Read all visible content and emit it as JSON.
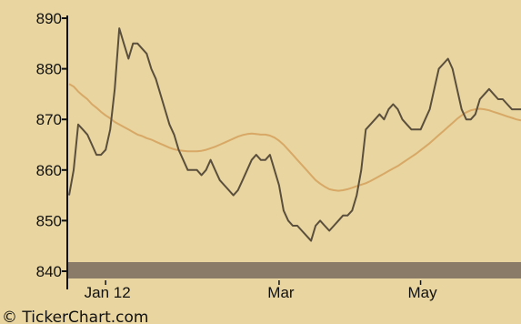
{
  "chart_data": {
    "type": "line",
    "title": "",
    "xlabel": "",
    "ylabel": "",
    "ylim": [
      840,
      890
    ],
    "yticks": [
      "890",
      "880",
      "870",
      "860",
      "850",
      "840"
    ],
    "ytick_values": [
      890,
      880,
      870,
      860,
      850,
      840
    ],
    "xticks": [
      {
        "label": "Jan 12",
        "index": 8
      },
      {
        "label": "Mar",
        "index": 46
      },
      {
        "label": "May",
        "index": 77
      }
    ],
    "x_count": 100,
    "grid": false,
    "legend": "none",
    "colors": {
      "background": "#e8d59f",
      "price": "#5a4e3c",
      "moving_average": "#d8a866",
      "volume_band": "#8a7a68",
      "axis": "#111111"
    },
    "series": [
      {
        "values": [
          855,
          860,
          869,
          868,
          867,
          865,
          863,
          863,
          864,
          868,
          876,
          888,
          885,
          882,
          885,
          885,
          884,
          883,
          880,
          878,
          875,
          872,
          869,
          867,
          864,
          862,
          860,
          860,
          860,
          859,
          860,
          862,
          860,
          858,
          857,
          856,
          855,
          856,
          858,
          860,
          862,
          863,
          862,
          862,
          863,
          860,
          857,
          852,
          850,
          849,
          849,
          848,
          847,
          846,
          849,
          850,
          849,
          848,
          849,
          850,
          851,
          851,
          852,
          855,
          860,
          868,
          869,
          870,
          871,
          870,
          872,
          873,
          872,
          870,
          869,
          868,
          868,
          868,
          870,
          872,
          876,
          880,
          881,
          882,
          880,
          876,
          872,
          870,
          870,
          871,
          874,
          875,
          876,
          875,
          874,
          874,
          873,
          872,
          872,
          872
        ]
      },
      {
        "values": [
          877,
          876.5,
          875.5,
          874.7,
          874,
          873,
          872.3,
          871.5,
          870.8,
          870.2,
          869.5,
          869,
          868.5,
          868,
          867.5,
          867,
          866.7,
          866.3,
          866,
          865.6,
          865.2,
          864.8,
          864.4,
          864.1,
          863.9,
          863.8,
          863.7,
          863.7,
          863.7,
          863.8,
          864,
          864.3,
          864.6,
          865,
          865.4,
          865.8,
          866.2,
          866.6,
          866.9,
          867.1,
          867.2,
          867.1,
          867,
          867,
          866.8,
          866.4,
          865.8,
          865,
          864,
          863,
          862,
          861,
          860,
          859,
          858,
          857.3,
          856.7,
          856.2,
          856,
          855.9,
          856,
          856.2,
          856.5,
          856.8,
          857.1,
          857.4,
          857.8,
          858.3,
          858.8,
          859.3,
          859.8,
          860.3,
          860.8,
          861.4,
          862,
          862.6,
          863.2,
          863.9,
          864.6,
          865.3,
          866.1,
          866.9,
          867.7,
          868.5,
          869.3,
          870.1,
          870.8,
          871.4,
          871.8,
          872,
          872.1,
          872,
          871.8,
          871.5,
          871.2,
          870.9,
          870.6,
          870.3,
          870,
          869.8
        ]
      }
    ]
  },
  "footer": {
    "credit": "© TickerChart.com"
  }
}
